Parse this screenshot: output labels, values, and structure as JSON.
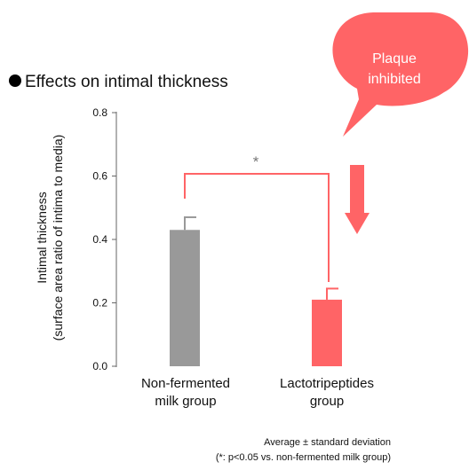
{
  "chart_data": {
    "type": "bar",
    "title": "Effects on intimal thickness",
    "ylabel_line1": "Intimal thickness",
    "ylabel_line2": "(surface area ratio of intima to media)",
    "ylim": [
      0,
      0.8
    ],
    "yticks": [
      0.0,
      0.2,
      0.4,
      0.6,
      0.8
    ],
    "ytick_labels": [
      "0.0",
      "0.2",
      "0.4",
      "0.6",
      "0.8"
    ],
    "categories": [
      {
        "line1": "Non-fermented",
        "line2": "milk group"
      },
      {
        "line1": "Lactotripeptides",
        "line2": "group"
      }
    ],
    "values": [
      0.43,
      0.21
    ],
    "errors": [
      0.04,
      0.035
    ],
    "bar_colors": [
      "#999999",
      "#ff6466"
    ],
    "significance_marker": "*",
    "callout": {
      "line1": "Plaque",
      "line2": "inhibited",
      "color": "#ff6466"
    },
    "arrow_color": "#ff6466",
    "footnote_line1": "Average ± standard deviation",
    "footnote_line2": "(*: p<0.05 vs. non-fermented milk group)",
    "grid": false
  }
}
